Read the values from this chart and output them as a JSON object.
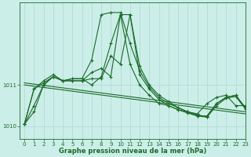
{
  "xlabel": "Graphe pression niveau de la mer (hPa)",
  "bg_color": "#cceee8",
  "grid_color": "#b8ddd8",
  "line_color": "#1a6b2a",
  "xlim": [
    -0.5,
    23
  ],
  "ylim": [
    1009.7,
    1013.0
  ],
  "yticks": [
    1010,
    1011
  ],
  "xticks": [
    0,
    1,
    2,
    3,
    4,
    5,
    6,
    7,
    8,
    9,
    10,
    11,
    12,
    13,
    14,
    15,
    16,
    17,
    18,
    19,
    20,
    21,
    22,
    23
  ],
  "series": [
    [
      1010.05,
      1010.35,
      1011.0,
      1011.2,
      1011.1,
      1011.15,
      1011.15,
      1011.6,
      1012.7,
      1012.75,
      1012.75,
      1012.0,
      1011.35,
      1010.95,
      1010.7,
      1010.55,
      1010.45,
      1010.35,
      1010.3,
      1010.55,
      1010.7,
      1010.75,
      1010.5,
      1010.5
    ],
    [
      1010.05,
      1010.5,
      1011.0,
      1011.2,
      1011.1,
      1011.1,
      1011.1,
      1011.3,
      1011.4,
      1011.2,
      1012.7,
      1011.5,
      1011.0,
      1010.75,
      1010.55,
      1010.5,
      1010.4,
      1010.35,
      1010.25,
      1010.25,
      1010.55,
      1010.7,
      1010.75,
      1010.45
    ],
    [
      1010.05,
      1010.9,
      1011.1,
      1011.25,
      1011.1,
      1011.15,
      1011.15,
      1011.0,
      1011.2,
      1012.0,
      1012.7,
      1012.7,
      1011.45,
      1011.0,
      1010.75,
      1010.6,
      1010.45,
      1010.35,
      1010.28,
      1010.23,
      1010.55,
      1010.7,
      1010.75,
      1010.45
    ],
    [
      1010.05,
      1010.9,
      1011.05,
      1011.2,
      1011.1,
      1011.1,
      1011.1,
      1011.15,
      1011.15,
      1011.7,
      1011.5,
      1012.7,
      1011.25,
      1010.9,
      1010.65,
      1010.5,
      1010.4,
      1010.32,
      1010.25,
      1010.22,
      1010.5,
      1010.68,
      1010.72,
      1010.42
    ]
  ],
  "linear_series": [
    {
      "x": [
        0,
        23
      ],
      "y": [
        1011.05,
        1010.35
      ]
    },
    {
      "x": [
        0,
        23
      ],
      "y": [
        1011.0,
        1010.3
      ]
    }
  ]
}
